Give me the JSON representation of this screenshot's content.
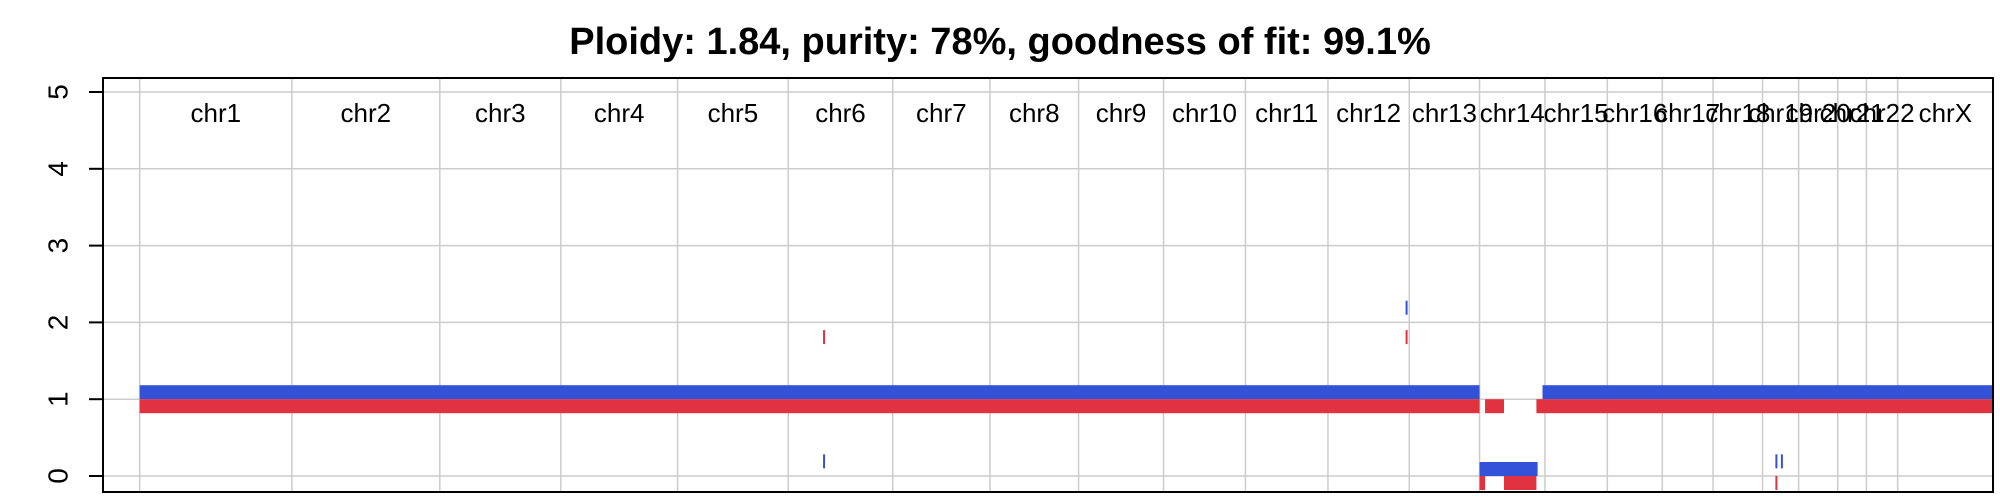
{
  "chart_data": {
    "type": "copy-number-segments",
    "title": "Ploidy: 1.84, purity: 78%, goodness of fit: 99.1%",
    "xlabel": "",
    "ylabel": "",
    "ylim": [
      0,
      5
    ],
    "yticks": [
      0,
      1,
      2,
      3,
      4,
      5
    ],
    "grid": true,
    "colors": {
      "major": "#3452d8",
      "minor": "#e0323f",
      "grid": "#cccccc",
      "frame": "#000000"
    },
    "chromosomes": [
      {
        "name": "chr1",
        "start": 0.0,
        "end": 2.49
      },
      {
        "name": "chr2",
        "start": 2.49,
        "end": 4.91
      },
      {
        "name": "chr3",
        "start": 4.91,
        "end": 6.89
      },
      {
        "name": "chr4",
        "start": 6.89,
        "end": 8.8
      },
      {
        "name": "chr5",
        "start": 8.8,
        "end": 10.61
      },
      {
        "name": "chr6",
        "start": 10.61,
        "end": 12.32
      },
      {
        "name": "chr7",
        "start": 12.32,
        "end": 13.91
      },
      {
        "name": "chr8",
        "start": 13.91,
        "end": 15.36
      },
      {
        "name": "chr9",
        "start": 15.36,
        "end": 16.75
      },
      {
        "name": "chr10",
        "start": 16.75,
        "end": 18.09
      },
      {
        "name": "chr11",
        "start": 18.09,
        "end": 19.44
      },
      {
        "name": "chr12",
        "start": 19.44,
        "end": 20.77
      },
      {
        "name": "chr13",
        "start": 20.77,
        "end": 21.92
      },
      {
        "name": "chr14",
        "start": 21.92,
        "end": 22.99
      },
      {
        "name": "chr15",
        "start": 22.99,
        "end": 24.01
      },
      {
        "name": "chr16",
        "start": 24.01,
        "end": 24.91
      },
      {
        "name": "chr17",
        "start": 24.91,
        "end": 25.74
      },
      {
        "name": "chr18",
        "start": 25.74,
        "end": 26.55
      },
      {
        "name": "chr19",
        "start": 26.55,
        "end": 27.14
      },
      {
        "name": "chr20",
        "start": 27.14,
        "end": 27.78
      },
      {
        "name": "chr21",
        "start": 27.78,
        "end": 28.25
      },
      {
        "name": "chr22",
        "start": 28.25,
        "end": 28.76
      },
      {
        "name": "chrX",
        "start": 28.76,
        "end": 30.32
      }
    ],
    "xlim": [
      -0.6,
      30.32
    ],
    "segments": [
      {
        "allele": "major",
        "start": 0.0,
        "end": 21.92,
        "cn": 1.0
      },
      {
        "allele": "minor",
        "start": 0.0,
        "end": 21.92,
        "cn": 1.0
      },
      {
        "allele": "major",
        "start": 21.92,
        "end": 22.87,
        "cn": 0.0
      },
      {
        "allele": "minor",
        "start": 21.92,
        "end": 22.01,
        "cn": 0.0
      },
      {
        "allele": "minor",
        "start": 22.01,
        "end": 22.32,
        "cn": 1.0
      },
      {
        "allele": "minor",
        "start": 22.32,
        "end": 22.85,
        "cn": 0.0
      },
      {
        "allele": "minor",
        "start": 22.85,
        "end": 22.95,
        "cn": 1.0
      },
      {
        "allele": "major",
        "start": 22.95,
        "end": 30.32,
        "cn": 1.0
      },
      {
        "allele": "minor",
        "start": 22.95,
        "end": 30.32,
        "cn": 1.0
      },
      {
        "allele": "minor",
        "start": 11.18,
        "end": 11.21,
        "cn": 1.9
      },
      {
        "allele": "major",
        "start": 11.18,
        "end": 11.21,
        "cn": 0.1
      },
      {
        "allele": "major",
        "start": 20.71,
        "end": 20.74,
        "cn": 2.1
      },
      {
        "allele": "minor",
        "start": 20.71,
        "end": 20.74,
        "cn": 1.9
      },
      {
        "allele": "major",
        "start": 26.76,
        "end": 26.79,
        "cn": 0.1
      },
      {
        "allele": "major",
        "start": 26.85,
        "end": 26.88,
        "cn": 0.1
      },
      {
        "allele": "minor",
        "start": 26.76,
        "end": 26.79,
        "cn": 0.0
      }
    ]
  }
}
